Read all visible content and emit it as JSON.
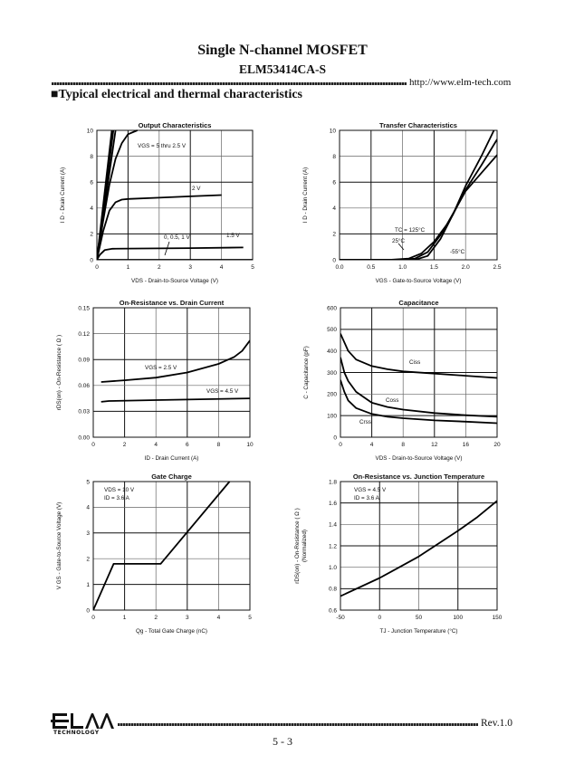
{
  "header": {
    "title": "Single N-channel MOSFET",
    "part_number": "ELM53414CA-S",
    "url": "http://www.elm-tech.com",
    "section_heading": "■Typical electrical and thermal characteristics"
  },
  "footer": {
    "logo_text": "ELM TECHNOLOGY",
    "logo_sub": "TECHNOLOGY",
    "revision": "Rev.1.0",
    "page_number": "5 - 3"
  },
  "chart_data": [
    {
      "type": "line",
      "title": "Output Characteristics",
      "xlabel": "VDS  -  Drain-to-Source Voltage (V)",
      "ylabel": "I D  -  Drain Current (A)",
      "xlim": [
        0,
        5
      ],
      "ylim": [
        0,
        10
      ],
      "xticks": [
        "0",
        "1",
        "2",
        "3",
        "4",
        "5"
      ],
      "yticks": [
        "0",
        "2",
        "4",
        "6",
        "8",
        "10"
      ],
      "grid": true,
      "series": [
        {
          "name": "5 V",
          "points": [
            [
              0,
              0
            ],
            [
              0.48,
              10
            ]
          ]
        },
        {
          "name": "4 V",
          "points": [
            [
              0,
              0
            ],
            [
              0.53,
              10
            ]
          ]
        },
        {
          "name": "3 V",
          "points": [
            [
              0,
              0
            ],
            [
              0.6,
              10
            ]
          ]
        },
        {
          "name": "2.5 V",
          "points": [
            [
              0,
              0
            ],
            [
              0.2,
              3
            ],
            [
              0.4,
              5.8
            ],
            [
              0.6,
              7.8
            ],
            [
              0.8,
              9
            ],
            [
              1,
              9.7
            ],
            [
              1.3,
              10
            ]
          ]
        },
        {
          "name": "2 V",
          "points": [
            [
              0,
              0
            ],
            [
              0.2,
              2.2
            ],
            [
              0.4,
              3.8
            ],
            [
              0.6,
              4.45
            ],
            [
              0.8,
              4.65
            ],
            [
              1,
              4.7
            ],
            [
              2,
              4.8
            ],
            [
              3,
              4.9
            ],
            [
              4,
              5
            ]
          ]
        },
        {
          "name": "1.5 V",
          "points": [
            [
              0,
              0
            ],
            [
              0.1,
              0.4
            ],
            [
              0.25,
              0.75
            ],
            [
              0.5,
              0.85
            ],
            [
              1,
              0.87
            ],
            [
              3,
              0.9
            ],
            [
              4.7,
              0.95
            ]
          ]
        },
        {
          "name": "0, 0.5, 1 V",
          "points": [
            [
              0,
              0
            ],
            [
              5,
              0
            ]
          ]
        }
      ],
      "annotations": [
        "VGS = 5 thru 2.5 V",
        "2 V",
        "1.5 V",
        "0, 0.5, 1 V"
      ]
    },
    {
      "type": "line",
      "title": "Transfer Characteristics",
      "xlabel": "VGS  -  Gate-to-Source Voltage (V)",
      "ylabel": "I D  -  Drain Current (A)",
      "xlim": [
        0,
        2.5
      ],
      "ylim": [
        0,
        10
      ],
      "xticks": [
        "0.0",
        "0.5",
        "1.0",
        "1.5",
        "2.0",
        "2.5"
      ],
      "yticks": [
        "0",
        "2",
        "4",
        "6",
        "8",
        "10"
      ],
      "grid": true,
      "series": [
        {
          "name": "TC = 125°C",
          "points": [
            [
              0,
              0
            ],
            [
              0.8,
              0
            ],
            [
              1.1,
              0.1
            ],
            [
              1.3,
              0.5
            ],
            [
              1.5,
              1.4
            ],
            [
              1.7,
              2.7
            ],
            [
              1.85,
              4
            ],
            [
              2,
              5.3
            ],
            [
              2.25,
              6.7
            ],
            [
              2.5,
              8.1
            ]
          ]
        },
        {
          "name": "25°C",
          "points": [
            [
              0,
              0
            ],
            [
              1,
              0
            ],
            [
              1.2,
              0.1
            ],
            [
              1.4,
              0.6
            ],
            [
              1.6,
              1.9
            ],
            [
              1.8,
              3.5
            ],
            [
              2,
              5.4
            ],
            [
              2.25,
              7.3
            ],
            [
              2.5,
              9.3
            ]
          ]
        },
        {
          "name": "-55°C",
          "points": [
            [
              0,
              0
            ],
            [
              1.2,
              0
            ],
            [
              1.4,
              0.3
            ],
            [
              1.6,
              1.6
            ],
            [
              1.8,
              3.5
            ],
            [
              2,
              5.7
            ],
            [
              2.25,
              8
            ],
            [
              2.45,
              10
            ]
          ]
        }
      ],
      "annotations": [
        "TC = 125°C",
        "25°C",
        "-55°C"
      ]
    },
    {
      "type": "line",
      "title": "On-Resistance vs. Drain Current",
      "xlabel": "ID  -  Drain Current (A)",
      "ylabel": "rDS(on) -  On-Resistance ( Ω )",
      "xlim": [
        0,
        10
      ],
      "ylim": [
        0,
        0.15
      ],
      "xticks": [
        "0",
        "2",
        "4",
        "6",
        "8",
        "10"
      ],
      "yticks": [
        "0.00",
        "0.03",
        "0.06",
        "0.09",
        "0.12",
        "0.15"
      ],
      "grid": true,
      "series": [
        {
          "name": "VGS = 2.5 V",
          "points": [
            [
              0.5,
              0.064
            ],
            [
              2,
              0.066
            ],
            [
              4,
              0.069
            ],
            [
              6,
              0.075
            ],
            [
              8,
              0.085
            ],
            [
              9,
              0.093
            ],
            [
              9.5,
              0.1
            ],
            [
              10,
              0.112
            ]
          ]
        },
        {
          "name": "VGS = 4.5 V",
          "points": [
            [
              0.5,
              0.041
            ],
            [
              1,
              0.042
            ],
            [
              4,
              0.043
            ],
            [
              10,
              0.045
            ]
          ]
        }
      ],
      "annotations": [
        "VGS = 2.5 V",
        "VGS = 4.5 V"
      ]
    },
    {
      "type": "line",
      "title": "Capacitance",
      "xlabel": "VDS  -  Drain-to-Source Voltage (V)",
      "ylabel": "C  -  Capacitance (pF)",
      "xlim": [
        0,
        20
      ],
      "ylim": [
        0,
        600
      ],
      "xticks": [
        "0",
        "4",
        "8",
        "12",
        "16",
        "20"
      ],
      "yticks": [
        "0",
        "100",
        "200",
        "300",
        "400",
        "500",
        "600"
      ],
      "grid": true,
      "series": [
        {
          "name": "Ciss",
          "points": [
            [
              0,
              480
            ],
            [
              0.5,
              440
            ],
            [
              1,
              400
            ],
            [
              2,
              360
            ],
            [
              4,
              330
            ],
            [
              6,
              315
            ],
            [
              8,
              305
            ],
            [
              12,
              295
            ],
            [
              16,
              285
            ],
            [
              20,
              275
            ]
          ]
        },
        {
          "name": "Coss",
          "points": [
            [
              0,
              370
            ],
            [
              0.5,
              300
            ],
            [
              1,
              260
            ],
            [
              2,
              210
            ],
            [
              4,
              160
            ],
            [
              6,
              140
            ],
            [
              8,
              128
            ],
            [
              12,
              112
            ],
            [
              16,
              102
            ],
            [
              20,
              95
            ]
          ]
        },
        {
          "name": "Crss",
          "points": [
            [
              0,
              265
            ],
            [
              0.5,
              210
            ],
            [
              1,
              170
            ],
            [
              2,
              135
            ],
            [
              4,
              108
            ],
            [
              6,
              95
            ],
            [
              8,
              88
            ],
            [
              12,
              78
            ],
            [
              16,
              72
            ],
            [
              20,
              65
            ]
          ]
        }
      ],
      "annotations": [
        "Ciss",
        "Coss",
        "Crss"
      ]
    },
    {
      "type": "line",
      "title": "Gate Charge",
      "xlabel": "Qg  -  Total Gate Charge (nC)",
      "ylabel": "V GS  -  Gate-to-Source Voltage (V)",
      "xlim": [
        0,
        5
      ],
      "ylim": [
        0,
        5
      ],
      "xticks": [
        "0",
        "1",
        "2",
        "3",
        "4",
        "5"
      ],
      "yticks": [
        "0",
        "1",
        "2",
        "3",
        "4",
        "5"
      ],
      "grid": true,
      "series": [
        {
          "name": "VGS",
          "points": [
            [
              0,
              0
            ],
            [
              0.65,
              1.8
            ],
            [
              2.15,
              1.8
            ],
            [
              4.35,
              5
            ]
          ]
        }
      ],
      "annotations": [
        "VDS = 10 V",
        "ID = 3.6 A"
      ]
    },
    {
      "type": "line",
      "title": "On-Resistance vs. Junction Temperature",
      "xlabel": "TJ - Junction Temperature (°C)",
      "ylabel": "rDS(on) -  On-Resistance ( Ω )",
      "ylabel2": "(Normalized)",
      "xlim": [
        -50,
        150
      ],
      "ylim": [
        0.6,
        1.8
      ],
      "xticks": [
        "-50",
        "0",
        "50",
        "100",
        "150"
      ],
      "yticks": [
        "0.6",
        "0.8",
        "1.0",
        "1.2",
        "1.4",
        "1.6",
        "1.8"
      ],
      "grid": true,
      "series": [
        {
          "name": "rDS(on)",
          "points": [
            [
              -50,
              0.73
            ],
            [
              0,
              0.9
            ],
            [
              25,
              1.0
            ],
            [
              50,
              1.1
            ],
            [
              75,
              1.22
            ],
            [
              100,
              1.34
            ],
            [
              125,
              1.47
            ],
            [
              150,
              1.62
            ]
          ]
        }
      ],
      "annotations": [
        "VGS = 4.5 V",
        "ID = 3.6 A"
      ]
    }
  ]
}
